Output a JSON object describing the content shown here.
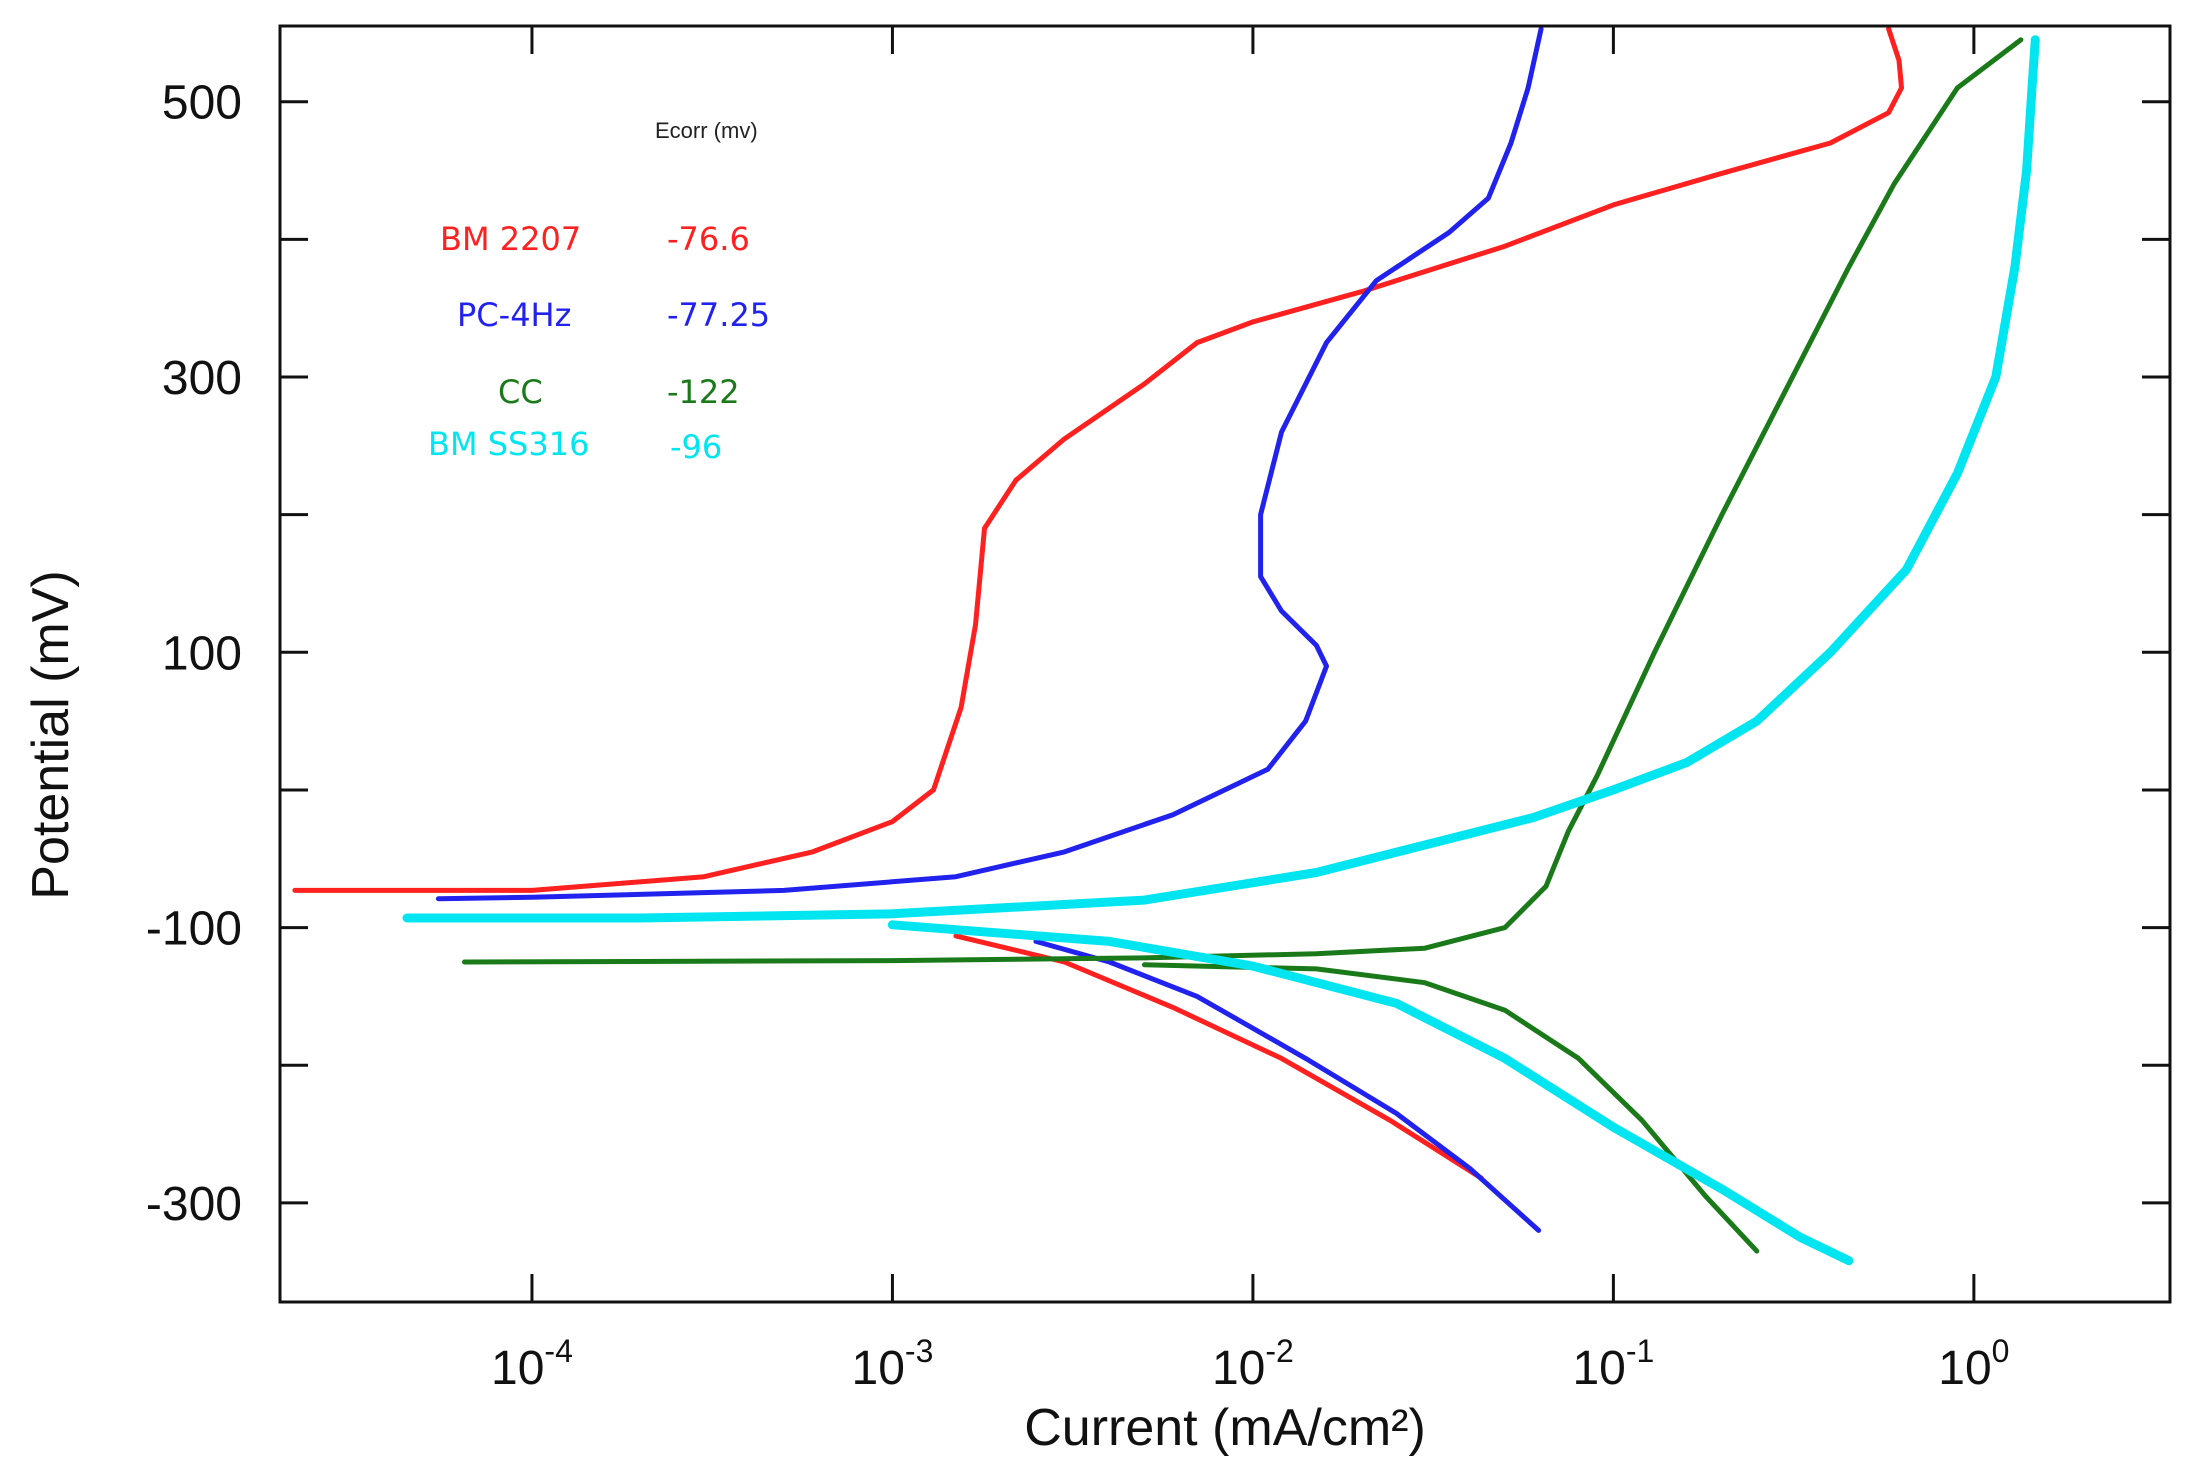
{
  "chart_data": {
    "type": "line",
    "title": "",
    "xlabel": "Current (mA/cm²)",
    "ylabel": "Potential (mV)",
    "xscale": "log",
    "xlim": [
      2e-05,
      3.5
    ],
    "ylim": [
      -372,
      555
    ],
    "xticks": [
      {
        "value": 0.0001,
        "base": "10",
        "exp": "-4"
      },
      {
        "value": 0.001,
        "base": "10",
        "exp": "-3"
      },
      {
        "value": 0.01,
        "base": "10",
        "exp": "-2"
      },
      {
        "value": 0.1,
        "base": "10",
        "exp": "-1"
      },
      {
        "value": 1,
        "base": "10",
        "exp": "0"
      }
    ],
    "yticks": [
      {
        "value": 500,
        "label": "500"
      },
      {
        "value": 300,
        "label": "300"
      },
      {
        "value": 100,
        "label": "100"
      },
      {
        "value": -100,
        "label": "-100"
      },
      {
        "value": -300,
        "label": "-300"
      }
    ],
    "yticks_unlabeled": [
      400,
      200,
      0,
      -200
    ],
    "legend": {
      "title": "Ecorr (mv)",
      "placement": "top-left",
      "entries": [
        {
          "name": "BM 2207",
          "ecorr": "-76.6",
          "color": "#ff2020"
        },
        {
          "name": "PC-4Hz",
          "ecorr": "-77.25",
          "color": "#2222ee"
        },
        {
          "name": "CC",
          "ecorr": "-122",
          "color": "#1a7a1a"
        },
        {
          "name": "BM SS316",
          "ecorr": "-96",
          "color": "#00e5f0"
        }
      ]
    },
    "series": [
      {
        "name": "BM 2207",
        "color": "#ff2020",
        "anodic": [
          [
            2.2e-05,
            -73
          ],
          [
            0.0001,
            -73
          ],
          [
            0.0003,
            -63
          ],
          [
            0.0006,
            -45
          ],
          [
            0.001,
            -23
          ],
          [
            0.0013,
            0
          ],
          [
            0.00155,
            60
          ],
          [
            0.0017,
            120
          ],
          [
            0.0018,
            190
          ],
          [
            0.0022,
            225
          ],
          [
            0.003,
            255
          ],
          [
            0.005,
            295
          ],
          [
            0.007,
            325
          ],
          [
            0.01,
            340
          ],
          [
            0.02,
            362
          ],
          [
            0.05,
            395
          ],
          [
            0.1,
            425
          ],
          [
            0.2,
            448
          ],
          [
            0.4,
            470
          ],
          [
            0.58,
            492
          ],
          [
            0.63,
            510
          ],
          [
            0.62,
            530
          ],
          [
            0.58,
            553
          ]
        ],
        "cathodic": [
          [
            0.0015,
            -106
          ],
          [
            0.003,
            -125
          ],
          [
            0.006,
            -158
          ],
          [
            0.012,
            -195
          ],
          [
            0.024,
            -240
          ],
          [
            0.043,
            -282
          ]
        ]
      },
      {
        "name": "PC-4Hz",
        "color": "#2222ee",
        "anodic": [
          [
            5.5e-05,
            -79
          ],
          [
            0.0001,
            -78
          ],
          [
            0.0005,
            -73
          ],
          [
            0.0015,
            -63
          ],
          [
            0.003,
            -45
          ],
          [
            0.006,
            -18
          ],
          [
            0.011,
            15
          ],
          [
            0.014,
            50
          ],
          [
            0.016,
            90
          ],
          [
            0.015,
            105
          ],
          [
            0.012,
            130
          ],
          [
            0.0105,
            155
          ],
          [
            0.0105,
            200
          ],
          [
            0.012,
            260
          ],
          [
            0.016,
            325
          ],
          [
            0.022,
            370
          ],
          [
            0.035,
            405
          ],
          [
            0.045,
            430
          ],
          [
            0.052,
            470
          ],
          [
            0.058,
            510
          ],
          [
            0.063,
            553
          ]
        ],
        "cathodic": [
          [
            0.0025,
            -110
          ],
          [
            0.004,
            -125
          ],
          [
            0.007,
            -150
          ],
          [
            0.014,
            -195
          ],
          [
            0.025,
            -235
          ],
          [
            0.04,
            -275
          ],
          [
            0.062,
            -320
          ]
        ]
      },
      {
        "name": "CC",
        "color": "#1a7a1a",
        "anodic": [
          [
            6.5e-05,
            -125
          ],
          [
            0.001,
            -124
          ],
          [
            0.005,
            -122
          ],
          [
            0.015,
            -119
          ],
          [
            0.03,
            -115
          ],
          [
            0.05,
            -100
          ],
          [
            0.065,
            -70
          ],
          [
            0.075,
            -30
          ],
          [
            0.09,
            10
          ],
          [
            0.13,
            100
          ],
          [
            0.2,
            200
          ],
          [
            0.3,
            290
          ],
          [
            0.45,
            380
          ],
          [
            0.6,
            440
          ],
          [
            0.9,
            510
          ],
          [
            1.35,
            545
          ]
        ],
        "cathodic": [
          [
            0.005,
            -127
          ],
          [
            0.015,
            -130
          ],
          [
            0.03,
            -140
          ],
          [
            0.05,
            -160
          ],
          [
            0.08,
            -195
          ],
          [
            0.12,
            -240
          ],
          [
            0.18,
            -295
          ],
          [
            0.25,
            -335
          ]
        ]
      },
      {
        "name": "BM SS316",
        "color": "#00e5f0",
        "anodic": [
          [
            4.5e-05,
            -93
          ],
          [
            0.0002,
            -93
          ],
          [
            0.001,
            -90
          ],
          [
            0.005,
            -80
          ],
          [
            0.015,
            -60
          ],
          [
            0.03,
            -40
          ],
          [
            0.06,
            -20
          ],
          [
            0.1,
            0
          ],
          [
            0.16,
            20
          ],
          [
            0.25,
            50
          ],
          [
            0.4,
            100
          ],
          [
            0.65,
            160
          ],
          [
            0.9,
            230
          ],
          [
            1.15,
            300
          ],
          [
            1.3,
            380
          ],
          [
            1.4,
            450
          ],
          [
            1.45,
            510
          ],
          [
            1.48,
            545
          ]
        ],
        "cathodic": [
          [
            0.001,
            -98
          ],
          [
            0.004,
            -110
          ],
          [
            0.01,
            -128
          ],
          [
            0.025,
            -155
          ],
          [
            0.05,
            -195
          ],
          [
            0.1,
            -245
          ],
          [
            0.2,
            -290
          ],
          [
            0.33,
            -325
          ],
          [
            0.45,
            -342
          ]
        ]
      }
    ]
  }
}
